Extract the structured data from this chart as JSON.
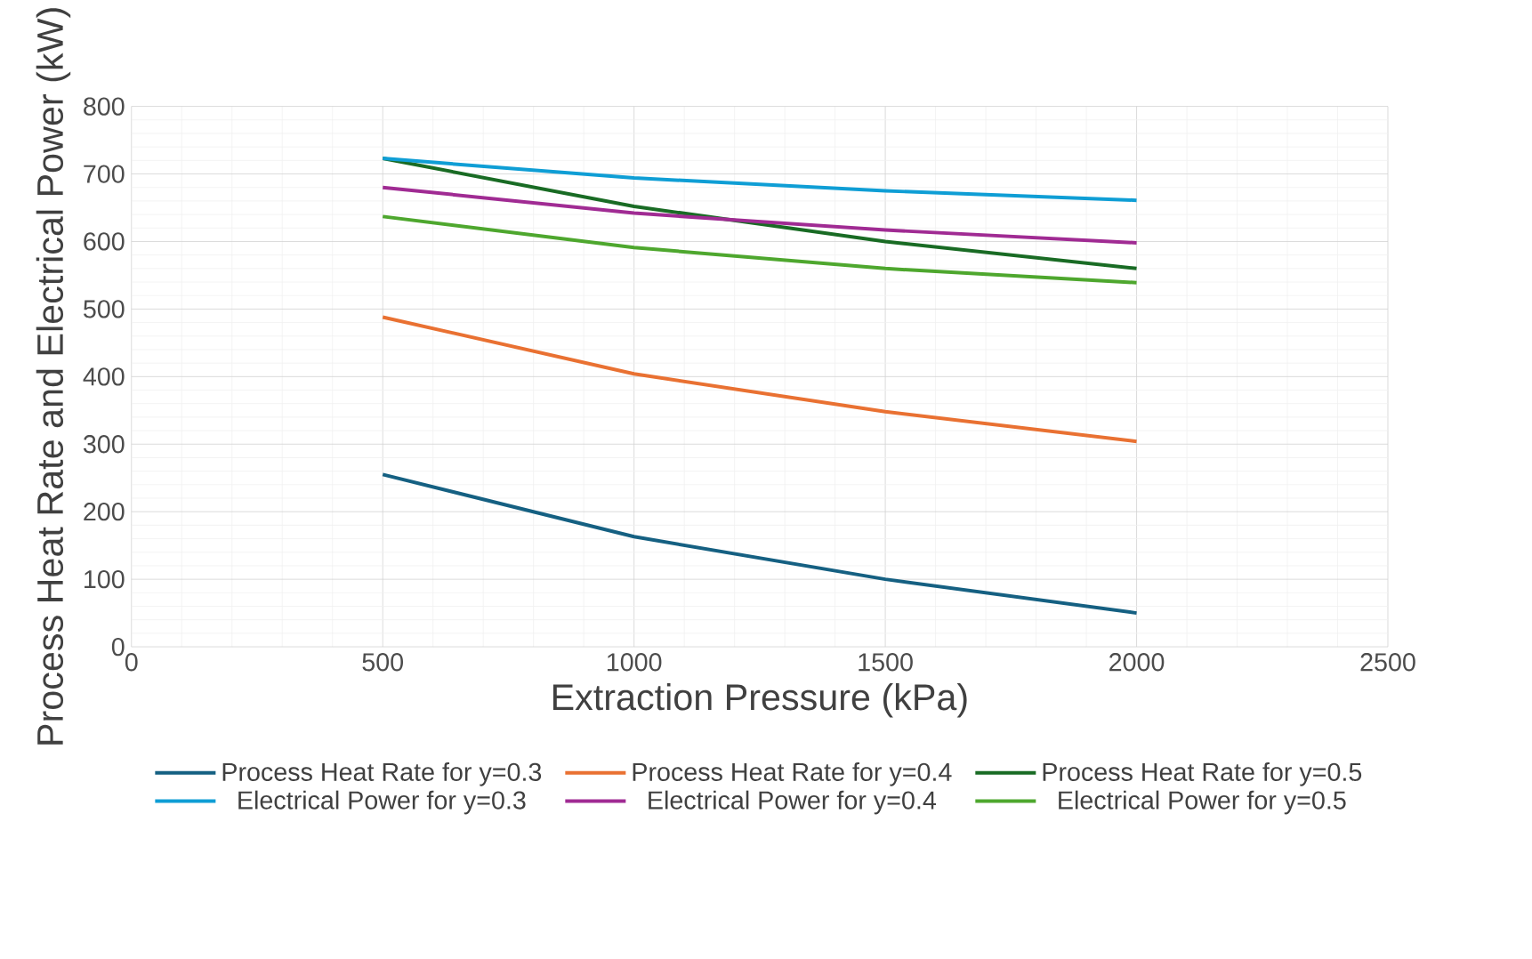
{
  "chart_data": {
    "type": "line",
    "xlabel": "Extraction Pressure (kPa)",
    "ylabel": "Process Heat Rate and Electrical Power (kW)",
    "x": [
      500,
      1000,
      1500,
      2000
    ],
    "series": [
      {
        "name": "Process Heat Rate for y=0.3",
        "color": "#156082",
        "values": [
          255,
          163,
          100,
          50
        ]
      },
      {
        "name": "Process Heat Rate for y=0.4",
        "color": "#e97132",
        "values": [
          488,
          404,
          348,
          304
        ]
      },
      {
        "name": "Process Heat Rate for y=0.5",
        "color": "#196b24",
        "values": [
          723,
          652,
          600,
          560
        ]
      },
      {
        "name": "Electrical Power for y=0.3",
        "color": "#0f9ed5",
        "values": [
          723,
          694,
          675,
          661
        ]
      },
      {
        "name": "Electrical Power for y=0.4",
        "color": "#a02b93",
        "values": [
          680,
          642,
          617,
          598
        ]
      },
      {
        "name": "Electrical Power for y=0.5",
        "color": "#4ea72e",
        "values": [
          637,
          591,
          560,
          539
        ]
      }
    ],
    "xlim": [
      0,
      2500
    ],
    "xticks": [
      0,
      500,
      1000,
      1500,
      2000,
      2500
    ],
    "ylim": [
      0,
      800
    ],
    "yticks": [
      0,
      100,
      200,
      300,
      400,
      500,
      600,
      700,
      800
    ],
    "grid": true,
    "legend": "bottom",
    "marker": "none",
    "line_style": "solid"
  }
}
